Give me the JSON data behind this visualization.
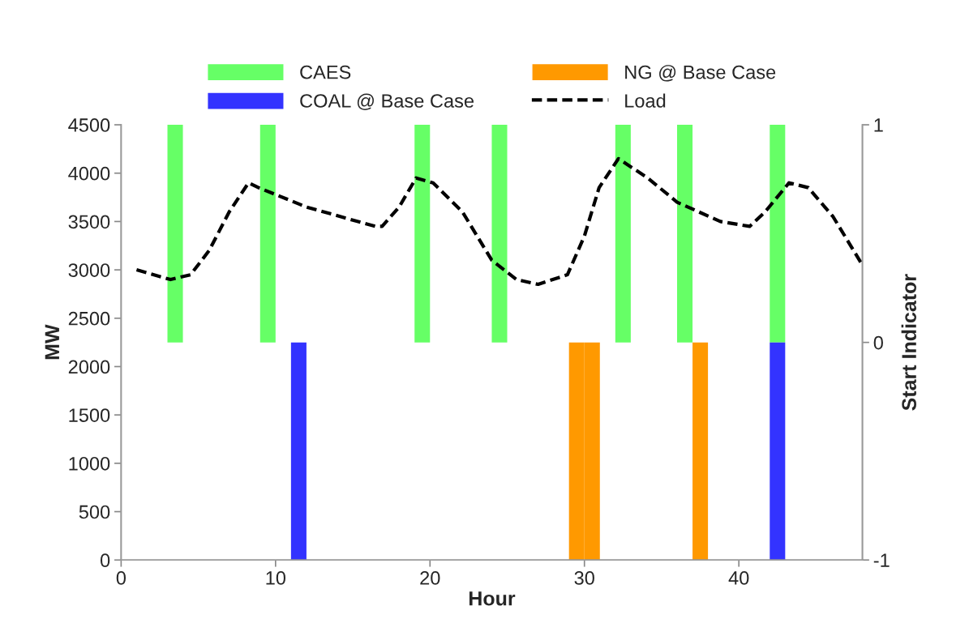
{
  "chart_data": {
    "type": "bar",
    "xlabel": "Hour",
    "ylabel": "MW",
    "y2label": "Start Indicator",
    "xlim": [
      0,
      48
    ],
    "xticks": [
      0,
      10,
      20,
      30,
      40
    ],
    "ylim": [
      0,
      4500
    ],
    "yticks": [
      0,
      500,
      1000,
      1500,
      2000,
      2500,
      3000,
      3500,
      4000,
      4500
    ],
    "y2lim": [
      -1,
      1
    ],
    "y2ticks": [
      -1,
      0,
      1
    ],
    "legend": "top",
    "grid": false,
    "series": [
      {
        "name": "CAES",
        "axis": "y2",
        "color": "#66ff66",
        "x": [
          3.5,
          9.5,
          19.5,
          24.5,
          32.5,
          36.5,
          42.5
        ],
        "values": [
          1,
          1,
          1,
          1,
          1,
          1,
          1
        ]
      },
      {
        "name": "COAL @ Base Case",
        "axis": "y2",
        "color": "#3333ff",
        "x": [
          11.5,
          42.5
        ],
        "values": [
          -1,
          -1
        ]
      },
      {
        "name": "NG @ Base Case",
        "axis": "y2",
        "color": "#ff9900",
        "x": [
          29.5,
          30.5,
          37.5
        ],
        "values": [
          -1,
          -1,
          -1
        ]
      },
      {
        "name": "Load",
        "type": "line",
        "axis": "y",
        "color": "#000000",
        "line_style": "dashed",
        "x": [
          1,
          3.2,
          4.5,
          5.7,
          7.0,
          8.25,
          8.9,
          12.0,
          16.45,
          16.9,
          18.0,
          19.1,
          20.2,
          22.1,
          24.0,
          25.6,
          27.0,
          28.9,
          30.0,
          30.95,
          32.2,
          34.1,
          36.0,
          38.8,
          40.7,
          41.7,
          43.25,
          44.5,
          46.1,
          48.0
        ],
        "values": [
          3000,
          2900,
          2950,
          3200,
          3600,
          3900,
          3850,
          3650,
          3450,
          3450,
          3650,
          3950,
          3900,
          3600,
          3100,
          2900,
          2850,
          2950,
          3350,
          3850,
          4150,
          3950,
          3700,
          3500,
          3450,
          3600,
          3900,
          3850,
          3550,
          3050
        ]
      }
    ]
  }
}
